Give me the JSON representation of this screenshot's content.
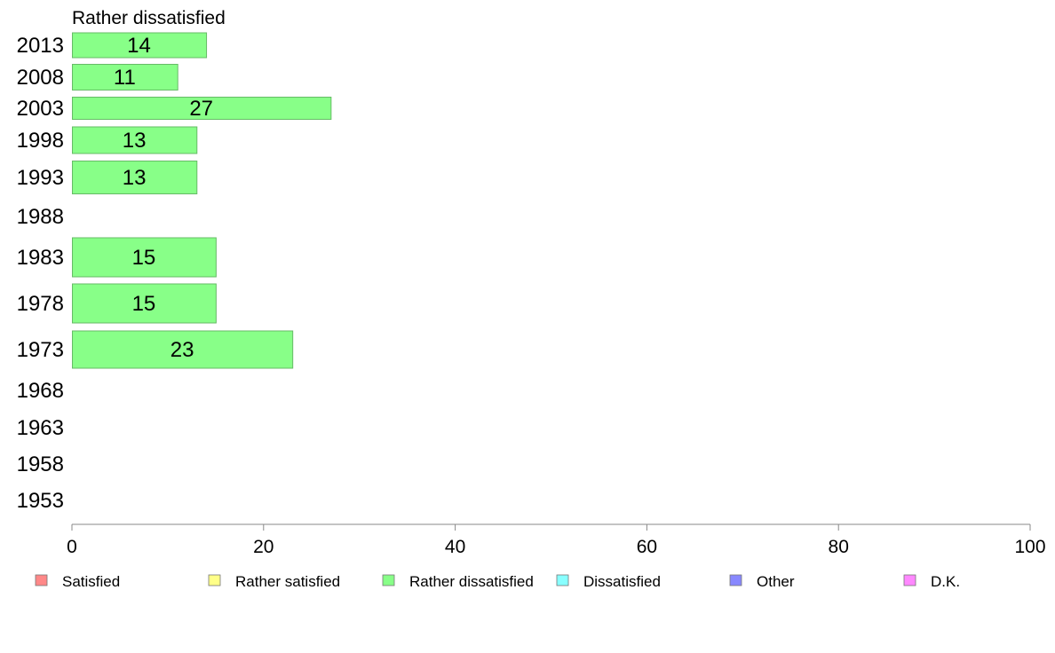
{
  "chart_data": {
    "type": "bar",
    "orientation": "horizontal",
    "title": "Rather dissatisfied",
    "categories": [
      "2013",
      "2008",
      "2003",
      "1998",
      "1993",
      "1988",
      "1983",
      "1978",
      "1973",
      "1968",
      "1963",
      "1958",
      "1953"
    ],
    "values": [
      14,
      11,
      27,
      13,
      13,
      null,
      15,
      15,
      23,
      null,
      null,
      null,
      null
    ],
    "xlim": [
      0,
      100
    ],
    "xticks": [
      0,
      20,
      40,
      60,
      80,
      100
    ],
    "bar_color": "#88ff88",
    "legend_placement": "bottom",
    "legend": [
      {
        "label": "Satisfied",
        "color": "#ff8888"
      },
      {
        "label": "Rather satisfied",
        "color": "#ffff88"
      },
      {
        "label": "Rather dissatisfied",
        "color": "#88ff88"
      },
      {
        "label": "Dissatisfied",
        "color": "#88ffff"
      },
      {
        "label": "Other",
        "color": "#8888ff"
      },
      {
        "label": "D.K.",
        "color": "#ff88ff"
      }
    ]
  }
}
